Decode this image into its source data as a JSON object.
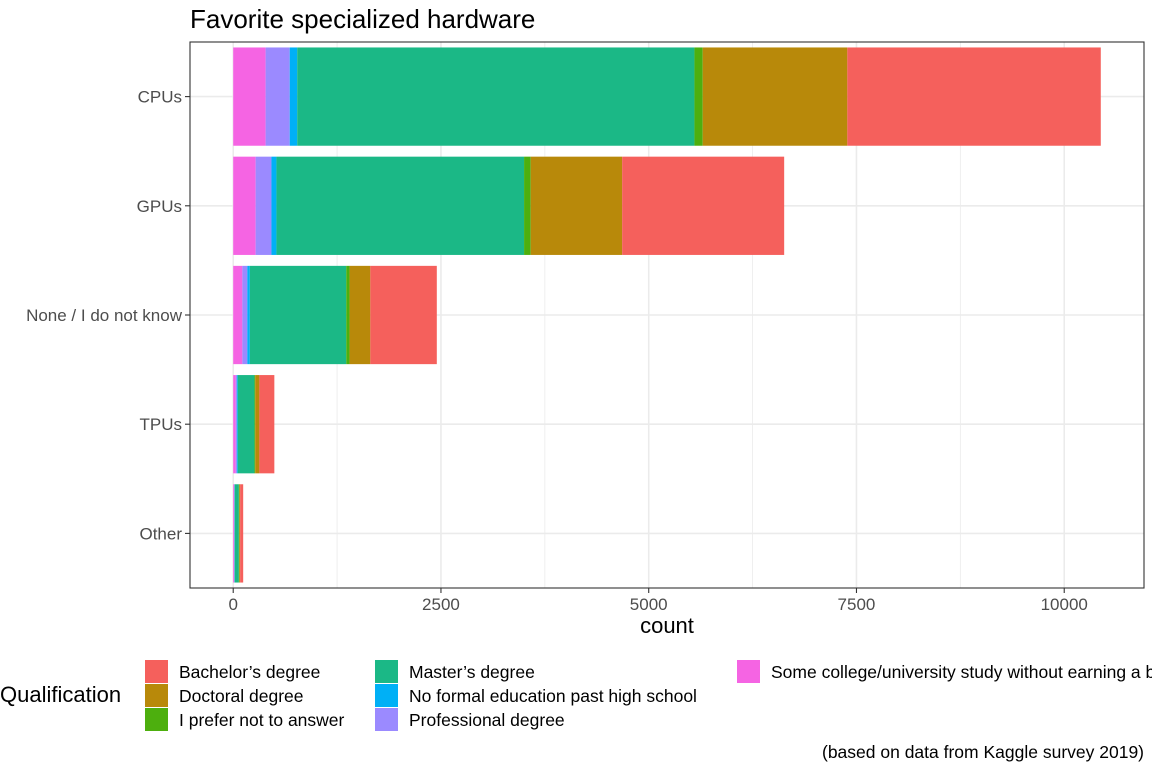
{
  "chart_data": {
    "type": "bar",
    "orientation": "horizontal",
    "stacked": true,
    "title": "Favorite specialized hardware",
    "caption": "(based on data from Kaggle survey 2019)",
    "xlabel": "count",
    "ylabel": "",
    "xlim": [
      -520,
      10960
    ],
    "x_ticks": [
      0,
      2500,
      5000,
      7500,
      10000
    ],
    "x_tick_labels": [
      "0",
      "2500",
      "5000",
      "7500",
      "10000"
    ],
    "grid": true,
    "legend_position": "bottom",
    "legend_title": "Qualification",
    "categories": [
      "CPUs",
      "GPUs",
      "None / I do not know",
      "TPUs",
      "Other"
    ],
    "series": [
      {
        "name": "Some college/university study without earning a bachelor’s degree",
        "color": "#F564E3",
        "values": [
          390,
          270,
          110,
          30,
          10
        ]
      },
      {
        "name": "Professional degree",
        "color": "#9B8AFF",
        "values": [
          290,
          190,
          60,
          15,
          5
        ]
      },
      {
        "name": "No formal education past high school",
        "color": "#00B0F6",
        "values": [
          90,
          60,
          30,
          10,
          3
        ]
      },
      {
        "name": "Master’s degree",
        "color": "#1BB886",
        "values": [
          4780,
          2980,
          1160,
          200,
          50
        ]
      },
      {
        "name": "I prefer not to answer",
        "color": "#4DAF0E",
        "values": [
          100,
          80,
          40,
          10,
          5
        ]
      },
      {
        "name": "Doctoral degree",
        "color": "#B8890A",
        "values": [
          1740,
          1100,
          250,
          50,
          10
        ]
      },
      {
        "name": "Bachelor’s degree",
        "color": "#F5605C",
        "values": [
          3050,
          1950,
          800,
          180,
          37
        ]
      }
    ],
    "legend_order": [
      6,
      5,
      4,
      3,
      2,
      1,
      0
    ],
    "legend_labels": [
      "Bachelor’s degree",
      "Doctoral degree",
      "I prefer not to answer",
      "Master’s degree",
      "No formal education past high school",
      "Professional degree",
      "Some college/university study without earning a bachelor’s degree"
    ]
  }
}
